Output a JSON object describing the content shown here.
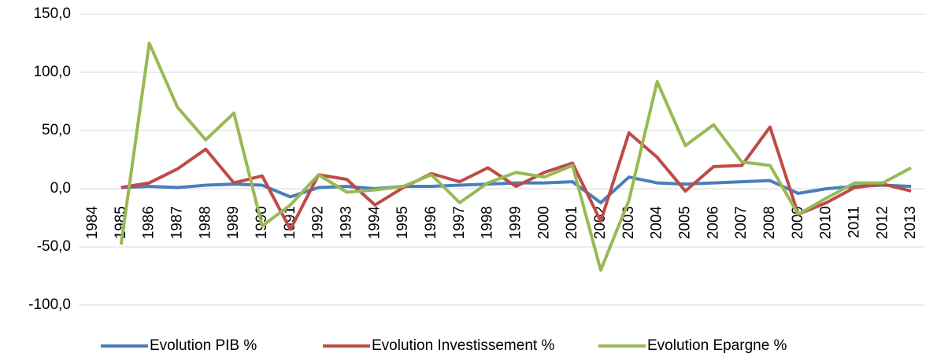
{
  "chart_data": {
    "type": "line",
    "categories": [
      "1984",
      "1985",
      "1986",
      "1987",
      "1988",
      "1989",
      "1990",
      "1991",
      "1992",
      "1993",
      "1994",
      "1995",
      "1996",
      "1997",
      "1998",
      "1999",
      "2000",
      "2001",
      "2002",
      "2003",
      "2004",
      "2005",
      "2006",
      "2007",
      "2008",
      "2009",
      "2010",
      "2011",
      "2012",
      "2013"
    ],
    "series": [
      {
        "name": "Evolution PIB %",
        "color": "#4a7ebb",
        "values": [
          null,
          1,
          2,
          1,
          3,
          4,
          3,
          -7,
          1,
          2,
          0,
          2,
          2,
          3,
          4,
          5,
          5,
          6,
          -12,
          10,
          5,
          4,
          5,
          6,
          7,
          -4,
          0,
          2,
          3,
          2
        ]
      },
      {
        "name": "Evolution Investissement %",
        "color": "#be4b48",
        "values": [
          null,
          1,
          5,
          17,
          34,
          5,
          11,
          -35,
          12,
          8,
          -14,
          1,
          13,
          6,
          18,
          2,
          14,
          22,
          -28,
          48,
          27,
          -2,
          19,
          20,
          53,
          -22,
          -12,
          1,
          4,
          -2
        ]
      },
      {
        "name": "Evolution Epargne %",
        "color": "#98b954",
        "values": [
          null,
          -48,
          125,
          70,
          42,
          65,
          -32,
          -14,
          12,
          -3,
          -1,
          2,
          12,
          -12,
          5,
          14,
          10,
          20,
          -70,
          -10,
          92,
          37,
          55,
          23,
          20,
          -22,
          -8,
          5,
          5,
          18
        ]
      }
    ],
    "ylim": [
      -100,
      150
    ],
    "yticks": [
      {
        "value": -100,
        "label": "-100,0"
      },
      {
        "value": -50,
        "label": "-50,0"
      },
      {
        "value": 0,
        "label": "0,0"
      },
      {
        "value": 50,
        "label": "50,0"
      },
      {
        "value": 100,
        "label": "100,0"
      },
      {
        "value": 150,
        "label": "150,0"
      }
    ],
    "grid": true,
    "legend": "bottom"
  }
}
